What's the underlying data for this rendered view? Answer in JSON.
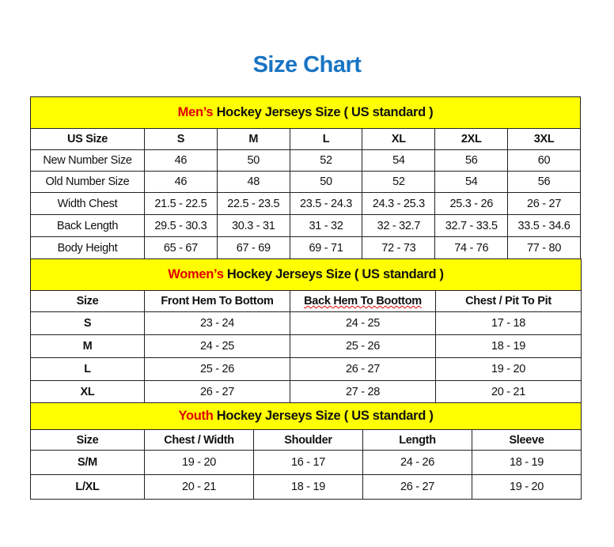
{
  "title": "Size Chart",
  "colors": {
    "title": "#1874c4",
    "header_bg": "#ffff00",
    "highlight": "#e00000"
  },
  "men": {
    "heading_highlight": "Men’s",
    "heading_rest": " Hockey Jerseys Size ( US standard )",
    "columns": [
      "US Size",
      "S",
      "M",
      "L",
      "XL",
      "2XL",
      "3XL"
    ],
    "rows": [
      [
        "New Number Size",
        "46",
        "50",
        "52",
        "54",
        "56",
        "60"
      ],
      [
        "Old Number Size",
        "46",
        "48",
        "50",
        "52",
        "54",
        "56"
      ],
      [
        "Width Chest",
        "21.5 - 22.5",
        "22.5 - 23.5",
        "23.5 - 24.3",
        "24.3 - 25.3",
        "25.3 - 26",
        "26 - 27"
      ],
      [
        "Back Length",
        "29.5 - 30.3",
        "30.3 - 31",
        "31 - 32",
        "32 - 32.7",
        "32.7 - 33.5",
        "33.5 - 34.6"
      ],
      [
        "Body Height",
        "65 - 67",
        "67 - 69",
        "69 - 71",
        "72 - 73",
        "74 - 76",
        "77 - 80"
      ]
    ]
  },
  "women": {
    "heading_highlight": "Women’s",
    "heading_rest": " Hockey Jerseys Size ( US standard )",
    "columns": [
      "Size",
      "Front Hem To Bottom",
      "Back Hem To Boottom",
      "Chest / Pit To Pit"
    ],
    "rows": [
      [
        "S",
        "23 - 24",
        "24 - 25",
        "17 - 18"
      ],
      [
        "M",
        "24 - 25",
        "25 - 26",
        "18 - 19"
      ],
      [
        "L",
        "25 - 26",
        "26 - 27",
        "19 - 20"
      ],
      [
        "XL",
        "26 - 27",
        "27 - 28",
        "20 - 21"
      ]
    ]
  },
  "youth": {
    "heading_highlight": "Youth",
    "heading_rest": " Hockey Jerseys Size ( US standard )",
    "columns": [
      "Size",
      "Chest / Width",
      "Shoulder",
      "Length",
      "Sleeve"
    ],
    "rows": [
      [
        "S/M",
        "19 - 20",
        "16 - 17",
        "24 - 26",
        "18 - 19"
      ],
      [
        "L/XL",
        "20 - 21",
        "18 - 19",
        "26 - 27",
        "19 - 20"
      ]
    ]
  }
}
